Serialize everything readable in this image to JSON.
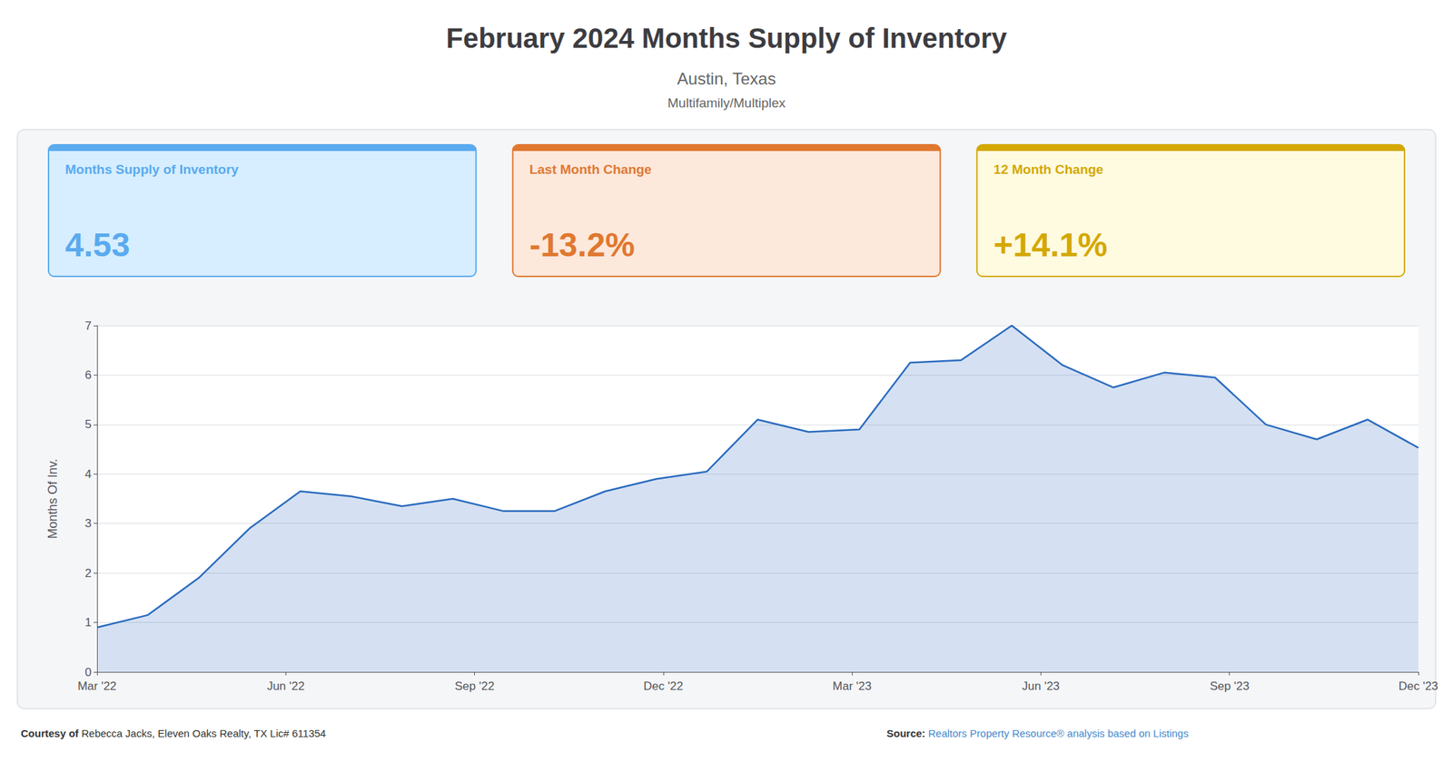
{
  "chart_data": {
    "type": "line",
    "title": "February 2024 Months Supply of Inventory",
    "subtitles": [
      "Austin, Texas",
      "Multifamily/Multiplex"
    ],
    "x": [
      0,
      1,
      2,
      3,
      4,
      5,
      6,
      7,
      8,
      9,
      10,
      11,
      12,
      13,
      14,
      15,
      16,
      17,
      18,
      19,
      20,
      21,
      22,
      23,
      24,
      25,
      26
    ],
    "values": [
      0.9,
      1.15,
      1.9,
      2.9,
      3.65,
      3.55,
      3.35,
      3.5,
      3.25,
      3.25,
      3.65,
      3.9,
      4.05,
      5.1,
      4.85,
      4.9,
      6.25,
      6.3,
      7.0,
      6.2,
      5.75,
      6.05,
      5.95,
      5.0,
      4.7,
      5.1,
      4.53
    ],
    "color": "#2b6bbf",
    "xlim": [
      0,
      26
    ],
    "xticks": [
      {
        "value": 0,
        "label": "Mar '22"
      },
      {
        "value": 3.7142857142857144,
        "label": "Jun '22"
      },
      {
        "value": 7.428571428571429,
        "label": "Sep '22"
      },
      {
        "value": 11.142857142857142,
        "label": "Dec '22"
      },
      {
        "value": 14.857142857142858,
        "label": "Mar '23"
      },
      {
        "value": 18.571428571428573,
        "label": "Jun '23"
      },
      {
        "value": 22.285714285714285,
        "label": "Sep '23"
      },
      {
        "value": 26,
        "label": "Dec '23"
      }
    ],
    "ylim": [
      0,
      7
    ],
    "yticks": [
      0,
      1,
      2,
      3,
      4,
      5,
      6,
      7
    ],
    "ylabel": "Months Of Inv.",
    "grid": true,
    "annotations": [
      {
        "label": "Months Supply of Inventory",
        "value": "4.53",
        "color": "#5aaaee",
        "background": "#d6eeff"
      },
      {
        "label": "Last Month Change",
        "value": "-13.2%",
        "color": "#e07830",
        "background": "#fde8dc"
      },
      {
        "label": "12 Month Change",
        "value": "+14.1%",
        "color": "#d4a800",
        "background": "#fffbe0"
      }
    ],
    "footer": [
      {
        "bold": "Courtesy of",
        "text": " Rebecca Jacks, Eleven Oaks Realty, TX Lic# 611354"
      },
      {
        "bold": "Source:",
        "text": " Realtors Property Resource® analysis based on Listings"
      }
    ]
  }
}
